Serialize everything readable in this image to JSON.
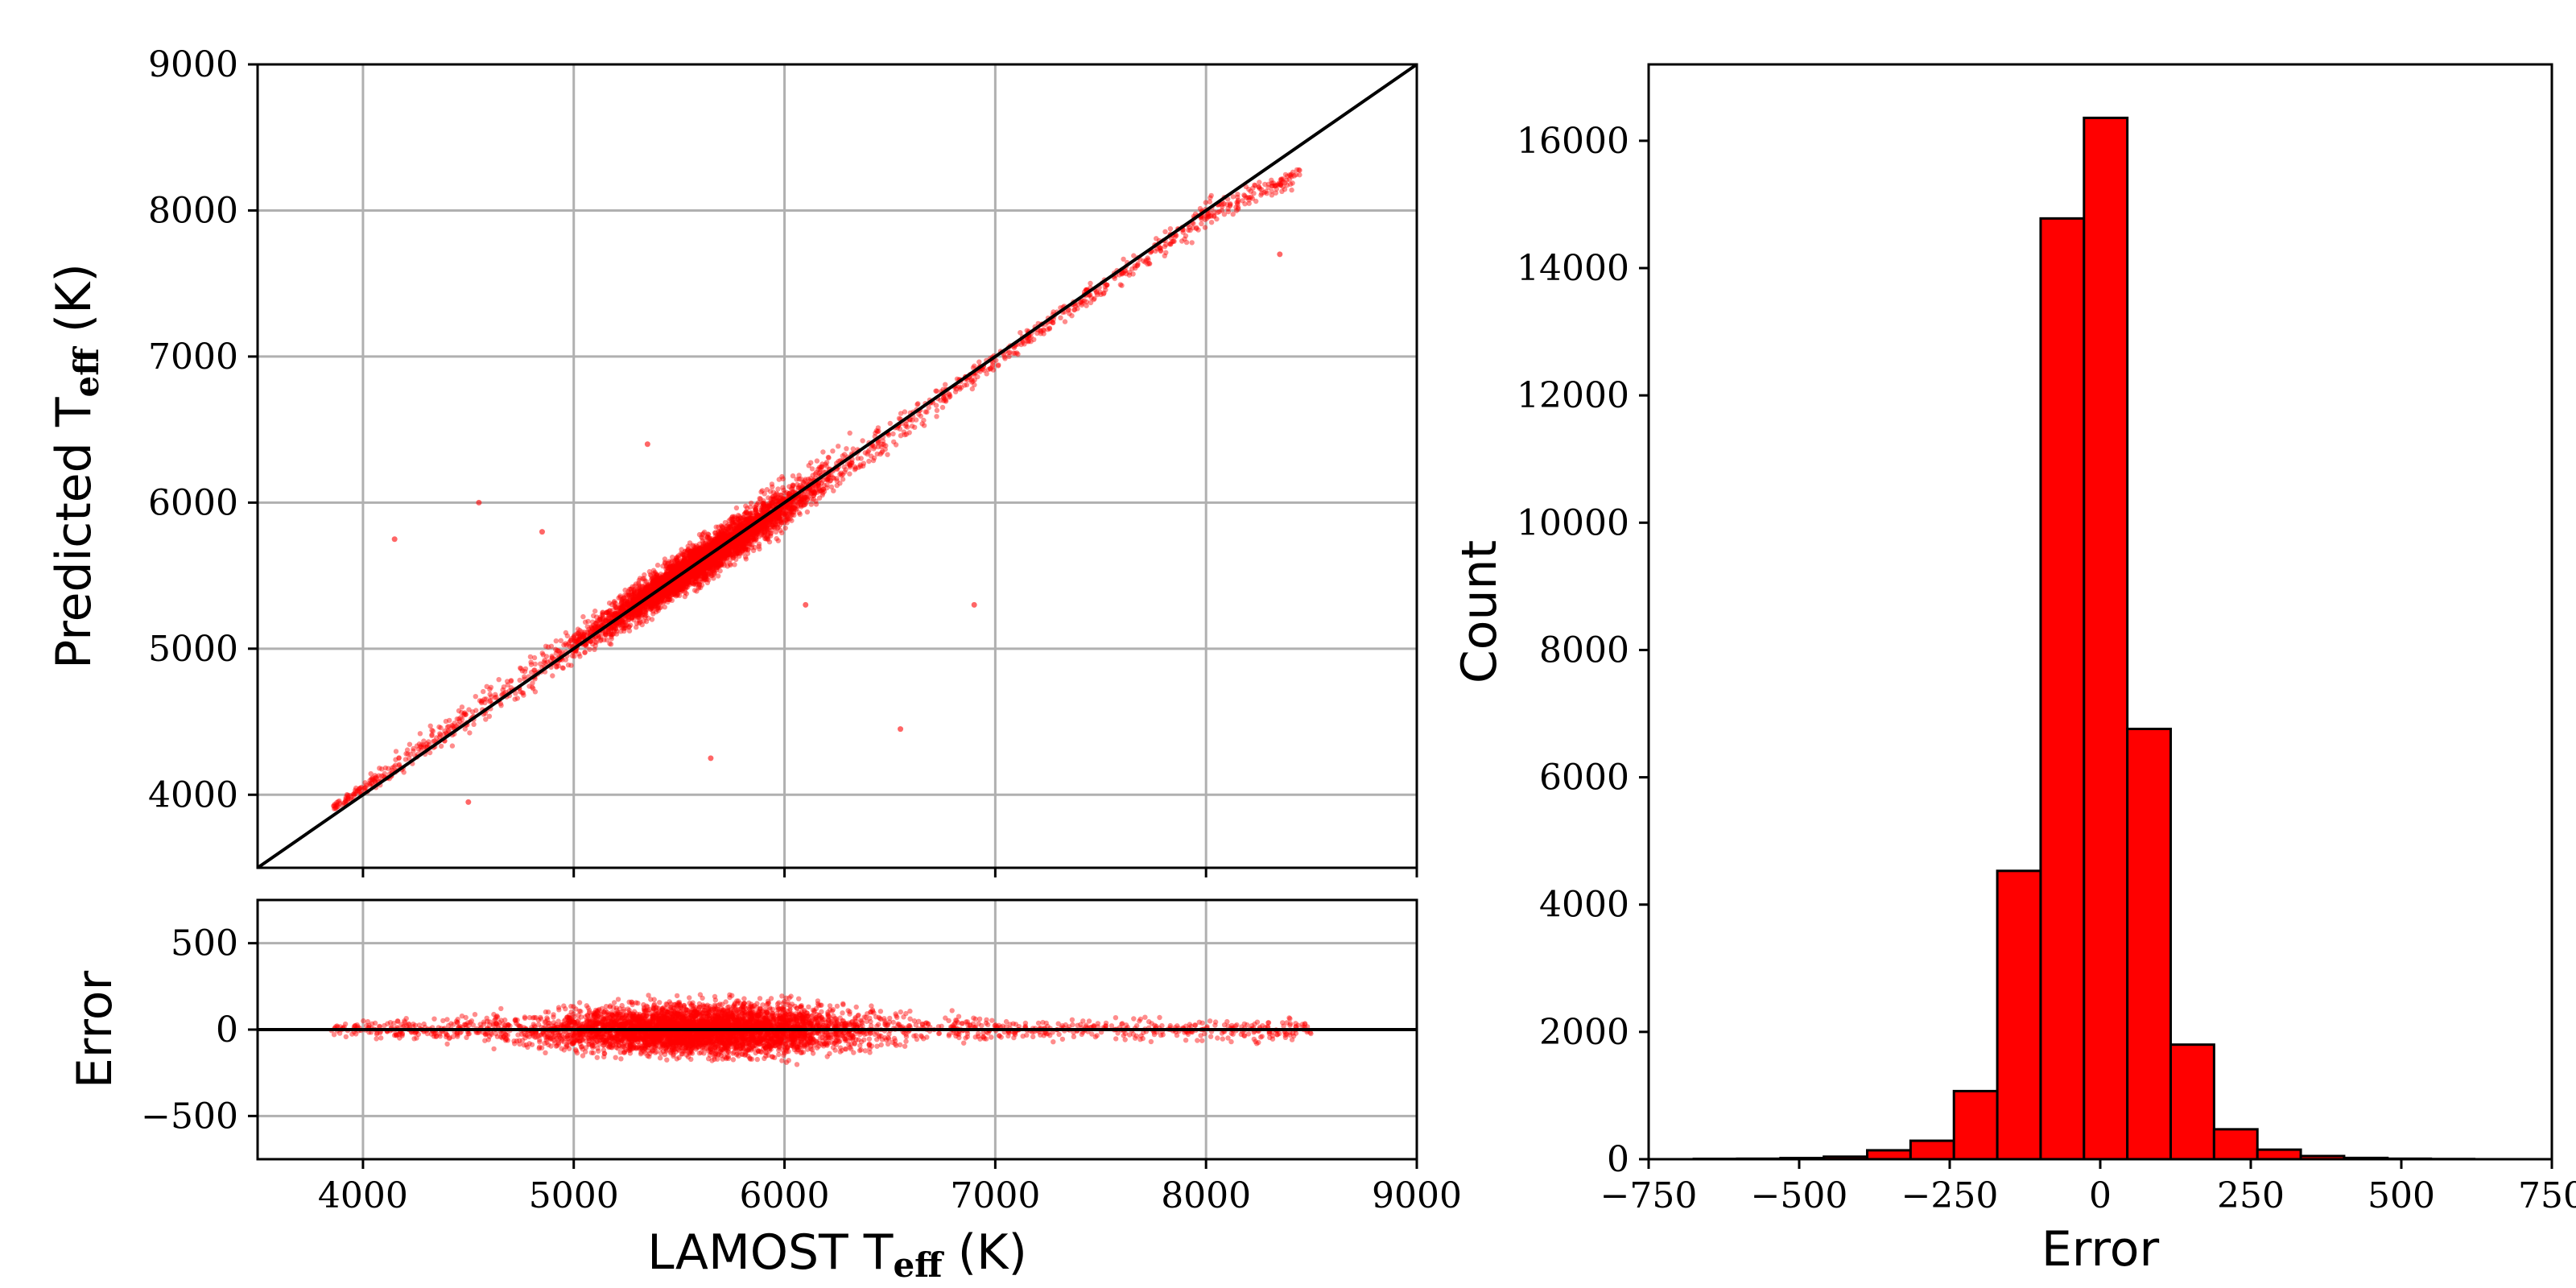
{
  "chart_data": [
    {
      "type": "scatter",
      "xlim": [
        3500,
        9000
      ],
      "ylim": [
        3500,
        9000
      ],
      "x_ticks": [
        "4000",
        "5000",
        "6000",
        "7000",
        "8000",
        "9000"
      ],
      "y_ticks": [
        "4000",
        "5000",
        "6000",
        "7000",
        "8000",
        "9000"
      ],
      "ylabel": "Predicted T",
      "ylabel_sub": "eff",
      "ylabel_unit": " (K)",
      "grid": true,
      "point_color": "#ff0000",
      "reference_line": "y = x",
      "point_envelope": [
        {
          "x": 3850,
          "low": 3850,
          "high": 3950
        },
        {
          "x": 4500,
          "low": 4300,
          "high": 4750
        },
        {
          "x": 5000,
          "low": 4800,
          "high": 5250
        },
        {
          "x": 5500,
          "low": 5250,
          "high": 5750
        },
        {
          "x": 6000,
          "low": 5700,
          "high": 6250
        },
        {
          "x": 6500,
          "low": 6250,
          "high": 6700
        },
        {
          "x": 7000,
          "low": 6850,
          "high": 7100
        },
        {
          "x": 7500,
          "low": 7350,
          "high": 7600
        },
        {
          "x": 8000,
          "low": 7800,
          "high": 8150
        },
        {
          "x": 8450,
          "low": 8150,
          "high": 8350
        }
      ],
      "outliers": [
        {
          "x": 4150,
          "y": 5750
        },
        {
          "x": 4550,
          "y": 6000
        },
        {
          "x": 4850,
          "y": 5800
        },
        {
          "x": 6550,
          "y": 4450
        },
        {
          "x": 5650,
          "y": 4250
        },
        {
          "x": 6900,
          "y": 5300
        },
        {
          "x": 8350,
          "y": 7700
        },
        {
          "x": 4500,
          "y": 3950
        },
        {
          "x": 5350,
          "y": 6400
        },
        {
          "x": 6100,
          "y": 5300
        }
      ]
    },
    {
      "type": "scatter",
      "xlim": [
        3500,
        9000
      ],
      "ylim": [
        -750,
        750
      ],
      "x_ticks": [
        "4000",
        "5000",
        "6000",
        "7000",
        "8000",
        "9000"
      ],
      "y_ticks": [
        "500",
        "0",
        "−500"
      ],
      "y_tick_values": [
        500,
        0,
        -500
      ],
      "xlabel": "LAMOST T",
      "xlabel_sub": "eff",
      "xlabel_unit": " (K)",
      "ylabel": "Error",
      "grid": true,
      "point_color": "#ff0000",
      "reference_line": "y = 0",
      "spread_profile": [
        {
          "x": 3850,
          "spread": 60
        },
        {
          "x": 4500,
          "spread": 180
        },
        {
          "x": 5000,
          "spread": 230
        },
        {
          "x": 5500,
          "spread": 270
        },
        {
          "x": 6000,
          "spread": 300
        },
        {
          "x": 6500,
          "spread": 220
        },
        {
          "x": 7000,
          "spread": 120
        },
        {
          "x": 7500,
          "spread": 110
        },
        {
          "x": 8000,
          "spread": 130
        },
        {
          "x": 8500,
          "spread": 140
        }
      ]
    },
    {
      "type": "bar",
      "subtype": "histogram",
      "xlim": [
        -750,
        750
      ],
      "ylim": [
        0,
        17200
      ],
      "x_ticks": [
        "−750",
        "−500",
        "−250",
        "0",
        "250",
        "500",
        "750"
      ],
      "x_tick_values": [
        -750,
        -500,
        -250,
        0,
        250,
        500,
        750
      ],
      "y_ticks": [
        "0",
        "2000",
        "4000",
        "6000",
        "8000",
        "10000",
        "12000",
        "14000",
        "16000"
      ],
      "y_tick_values": [
        0,
        2000,
        4000,
        6000,
        8000,
        10000,
        12000,
        14000,
        16000
      ],
      "xlabel": "Error",
      "ylabel": "Count",
      "bar_color": "#ff0000",
      "edge_color": "#000000",
      "bin_edges": [
        -675,
        -603,
        -531,
        -459,
        -387,
        -315,
        -243,
        -171,
        -99,
        -27,
        45,
        117,
        189,
        261,
        333,
        405,
        477,
        549,
        621
      ],
      "counts": [
        5,
        8,
        18,
        40,
        140,
        290,
        1070,
        4530,
        14780,
        16360,
        6760,
        1800,
        470,
        150,
        50,
        20,
        8,
        3
      ]
    }
  ]
}
